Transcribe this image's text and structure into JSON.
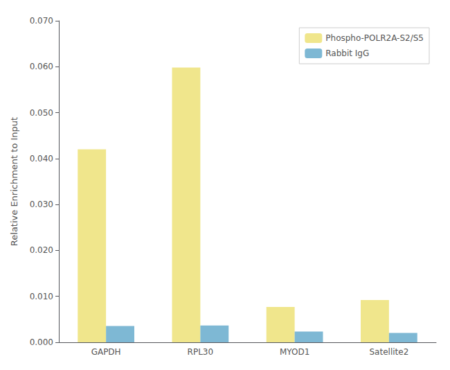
{
  "chart_data": {
    "type": "bar",
    "categories": [
      "GAPDH",
      "RPL30",
      "MYOD1",
      "Satellite2"
    ],
    "series": [
      {
        "name": "Phospho-POLR2A-S2/S5",
        "color": "#F0E68C",
        "values": [
          0.042,
          0.0598,
          0.0077,
          0.0092
        ]
      },
      {
        "name": "Rabbit IgG",
        "color": "#7EB8D4",
        "values": [
          0.00355,
          0.00365,
          0.00235,
          0.00205
        ]
      }
    ],
    "ylabel": "Relative Enrichment to Input",
    "ylim": [
      0,
      0.07
    ],
    "yticks": [
      {
        "value": 0.0,
        "label": "0.000"
      },
      {
        "value": 0.01,
        "label": "0.010"
      },
      {
        "value": 0.02,
        "label": "0.020"
      },
      {
        "value": 0.03,
        "label": "0.030"
      },
      {
        "value": 0.04,
        "label": "0.040"
      },
      {
        "value": 0.05,
        "label": "0.050"
      },
      {
        "value": 0.06,
        "label": "0.060"
      },
      {
        "value": 0.07,
        "label": "0.070"
      }
    ],
    "grid": false,
    "legend": "upper right"
  }
}
